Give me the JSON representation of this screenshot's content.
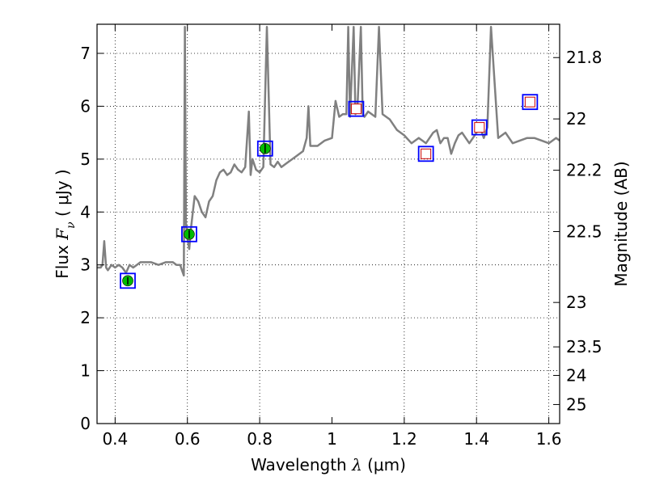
{
  "chart_data": {
    "type": "line",
    "xlabel": "Wavelength  λ (μm)",
    "ylabel": "Flux  Fν  ( μJy )",
    "ylabel_parts": {
      "prefix": "Flux  ",
      "sym": "F",
      "sub": "ν",
      "suffix": "  ( μJy )"
    },
    "xlabel_parts": {
      "prefix": "Wavelength  ",
      "sym": "λ",
      "suffix": " (μm)"
    },
    "right_ylabel": "Magnitude (AB)",
    "xlim": [
      0.35,
      1.63
    ],
    "ylim": [
      0,
      7.55
    ],
    "x_ticks": [
      0.4,
      0.6,
      0.8,
      1.0,
      1.2,
      1.4,
      1.6
    ],
    "x_tick_labels": [
      "0.4",
      "0.6",
      "0.8",
      "1",
      "1.2",
      "1.4",
      "1.6"
    ],
    "y_ticks": [
      0,
      1,
      2,
      3,
      4,
      5,
      6,
      7
    ],
    "y_tick_labels": [
      "0",
      "1",
      "2",
      "3",
      "4",
      "5",
      "6",
      "7"
    ],
    "right_ticks": [
      {
        "label": "21.8",
        "flux": 6.92
      },
      {
        "label": "22",
        "flux": 5.76
      },
      {
        "label": "22.2",
        "flux": 4.79
      },
      {
        "label": "22.5",
        "flux": 3.63
      },
      {
        "label": "23",
        "flux": 2.29
      },
      {
        "label": "23.5",
        "flux": 1.45
      },
      {
        "label": "24",
        "flux": 0.91
      },
      {
        "label": "25",
        "flux": 0.36
      }
    ],
    "grid": true,
    "colors": {
      "spectrum": "#808080",
      "model_box": "#0000ff",
      "observed_fill": "#00bb00",
      "upper_limit_edge": "#cc0000"
    },
    "series": [
      {
        "name": "spectrum",
        "style": "line",
        "x": [
          0.35,
          0.36,
          0.365,
          0.37,
          0.375,
          0.38,
          0.39,
          0.4,
          0.41,
          0.42,
          0.43,
          0.44,
          0.45,
          0.46,
          0.47,
          0.48,
          0.5,
          0.52,
          0.54,
          0.56,
          0.57,
          0.58,
          0.585,
          0.59,
          0.593,
          0.596,
          0.6,
          0.605,
          0.61,
          0.62,
          0.63,
          0.64,
          0.65,
          0.66,
          0.67,
          0.68,
          0.69,
          0.7,
          0.71,
          0.72,
          0.73,
          0.74,
          0.75,
          0.76,
          0.77,
          0.775,
          0.78,
          0.79,
          0.8,
          0.81,
          0.82,
          0.83,
          0.84,
          0.85,
          0.86,
          0.87,
          0.88,
          0.9,
          0.92,
          0.93,
          0.935,
          0.94,
          0.96,
          0.98,
          1.0,
          1.01,
          1.02,
          1.03,
          1.04,
          1.045,
          1.05,
          1.06,
          1.065,
          1.07,
          1.08,
          1.085,
          1.09,
          1.1,
          1.12,
          1.13,
          1.14,
          1.16,
          1.18,
          1.2,
          1.22,
          1.24,
          1.25,
          1.26,
          1.27,
          1.28,
          1.29,
          1.3,
          1.31,
          1.32,
          1.33,
          1.34,
          1.35,
          1.36,
          1.37,
          1.38,
          1.39,
          1.4,
          1.41,
          1.42,
          1.43,
          1.44,
          1.46,
          1.48,
          1.5,
          1.52,
          1.54,
          1.56,
          1.58,
          1.6,
          1.62,
          1.63
        ],
        "y": [
          2.95,
          2.95,
          3.0,
          3.45,
          2.95,
          2.9,
          3.0,
          2.95,
          3.0,
          2.95,
          2.85,
          3.0,
          2.95,
          3.0,
          3.05,
          3.05,
          3.05,
          3.0,
          3.05,
          3.05,
          3.0,
          3.0,
          2.9,
          2.8,
          7.5,
          3.8,
          3.5,
          3.3,
          3.7,
          4.3,
          4.2,
          4.0,
          3.9,
          4.2,
          4.3,
          4.6,
          4.75,
          4.8,
          4.7,
          4.75,
          4.9,
          4.8,
          4.75,
          4.85,
          5.9,
          4.7,
          5.0,
          4.8,
          4.75,
          4.85,
          7.5,
          4.9,
          4.85,
          4.95,
          4.85,
          4.9,
          4.95,
          5.05,
          5.15,
          5.4,
          6.0,
          5.25,
          5.25,
          5.35,
          5.4,
          6.1,
          5.8,
          5.85,
          5.85,
          7.5,
          5.8,
          7.5,
          5.85,
          5.9,
          7.5,
          5.85,
          5.8,
          5.9,
          5.8,
          7.5,
          5.85,
          5.75,
          5.55,
          5.45,
          5.3,
          5.4,
          5.35,
          5.3,
          5.4,
          5.5,
          5.55,
          5.3,
          5.4,
          5.4,
          5.1,
          5.3,
          5.45,
          5.5,
          5.4,
          5.3,
          5.4,
          5.5,
          5.6,
          5.4,
          5.6,
          7.5,
          5.4,
          5.5,
          5.3,
          5.35,
          5.4,
          5.4,
          5.35,
          5.3,
          5.4,
          5.35
        ]
      },
      {
        "name": "observed",
        "style": "markers",
        "marker": "filled-circle",
        "x": [
          0.435,
          0.605,
          0.815
        ],
        "y": [
          2.7,
          3.58,
          5.2
        ],
        "yerr": [
          0.07,
          0.08,
          0.09
        ]
      },
      {
        "name": "upper_limits",
        "style": "markers",
        "marker": "open-square",
        "x": [
          1.067,
          1.26,
          1.408,
          1.548
        ],
        "y": [
          5.95,
          5.1,
          5.6,
          6.08
        ]
      },
      {
        "name": "model_photometry",
        "style": "markers",
        "marker": "open-box",
        "x": [
          0.435,
          0.605,
          0.815,
          1.067,
          1.26,
          1.408,
          1.548
        ],
        "y": [
          2.7,
          3.58,
          5.2,
          5.95,
          5.1,
          5.6,
          6.08
        ]
      }
    ]
  }
}
